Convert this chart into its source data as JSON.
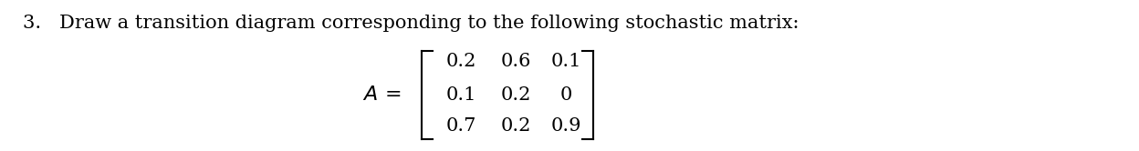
{
  "number": "3.",
  "text": "Draw a transition diagram corresponding to the following stochastic matrix:",
  "matrix": [
    [
      "0.2",
      "0.6",
      "0.1"
    ],
    [
      "0.1",
      "0.2",
      "0"
    ],
    [
      "0.7",
      "0.2",
      "0.9"
    ]
  ],
  "font_family": "DejaVu Serif",
  "font_size_text": 15,
  "font_size_matrix": 15,
  "text_color": "#000000",
  "background_color": "#ffffff",
  "figsize": [
    12.48,
    1.66
  ],
  "dpi": 100
}
